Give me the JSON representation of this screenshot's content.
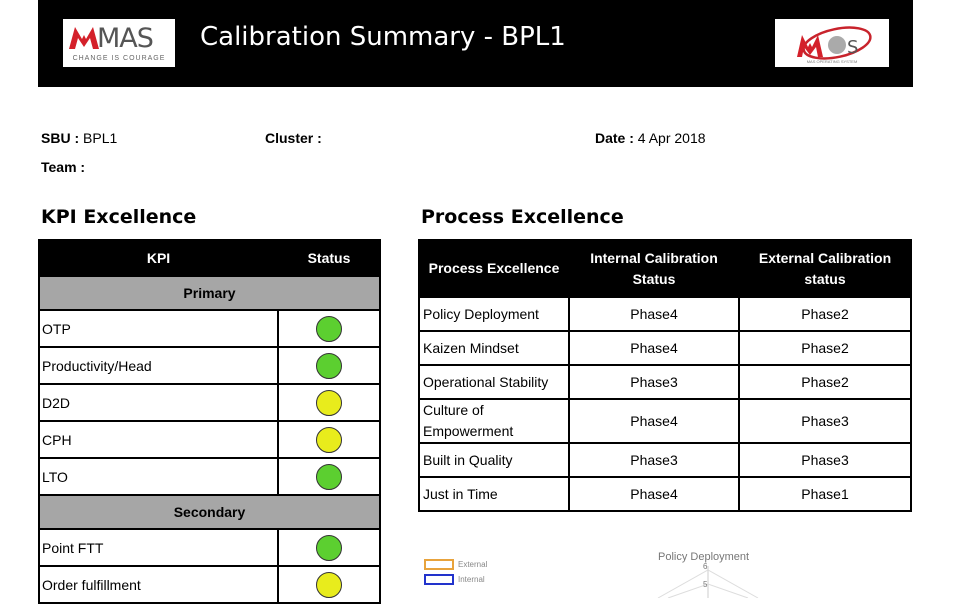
{
  "header": {
    "title": "Calibration Summary - BPL1",
    "left_logo": {
      "word": "MAS",
      "tagline": "CHANGE IS COURAGE"
    },
    "right_logo": {
      "word": "MOS",
      "tagline": "MAS OPERATING SYSTEM"
    }
  },
  "meta": {
    "sbu_label": "SBU :",
    "sbu_value": "BPL1",
    "cluster_label": "Cluster :",
    "cluster_value": "",
    "date_label": "Date :",
    "date_value": "4 Apr 2018",
    "team_label": "Team :",
    "team_value": ""
  },
  "kpi": {
    "title": "KPI Excellence",
    "col_kpi": "KPI",
    "col_status": "Status",
    "primary_label": "Primary",
    "secondary_label": "Secondary",
    "primary": [
      {
        "name": "OTP",
        "status": "green"
      },
      {
        "name": "Productivity/Head",
        "status": "green"
      },
      {
        "name": "D2D",
        "status": "yellow"
      },
      {
        "name": "CPH",
        "status": "yellow"
      },
      {
        "name": "LTO",
        "status": "green"
      }
    ],
    "secondary": [
      {
        "name": "Point FTT",
        "status": "green"
      },
      {
        "name": "Order fulfillment",
        "status": "yellow"
      }
    ]
  },
  "process": {
    "title": "Process Excellence",
    "col_1": "Process Excellence",
    "col_2": "Internal Calibration Status",
    "col_3": "External Calibration status",
    "rows": [
      {
        "name": "Policy Deployment",
        "internal": "Phase4",
        "external": "Phase2"
      },
      {
        "name": "Kaizen Mindset",
        "internal": "Phase4",
        "external": "Phase2"
      },
      {
        "name": "Operational Stability",
        "internal": "Phase3",
        "external": "Phase2"
      },
      {
        "name": "Culture of Empowerment",
        "internal": "Phase4",
        "external": "Phase3"
      },
      {
        "name": "Built in Quality",
        "internal": "Phase3",
        "external": "Phase3"
      },
      {
        "name": "Just in Time",
        "internal": "Phase4",
        "external": "Phase1"
      }
    ]
  },
  "radar": {
    "axis_top_label": "Policy Deployment",
    "tick_6": "6",
    "tick_5": "5",
    "legend": [
      {
        "label": "External",
        "color": "#e8a33c"
      },
      {
        "label": "Internal",
        "color": "#2233cc"
      }
    ]
  },
  "colors": {
    "green": "#5ccf30",
    "yellow": "#e8ec1c",
    "group_gray": "#a6a6a6",
    "header_black": "#000000"
  }
}
